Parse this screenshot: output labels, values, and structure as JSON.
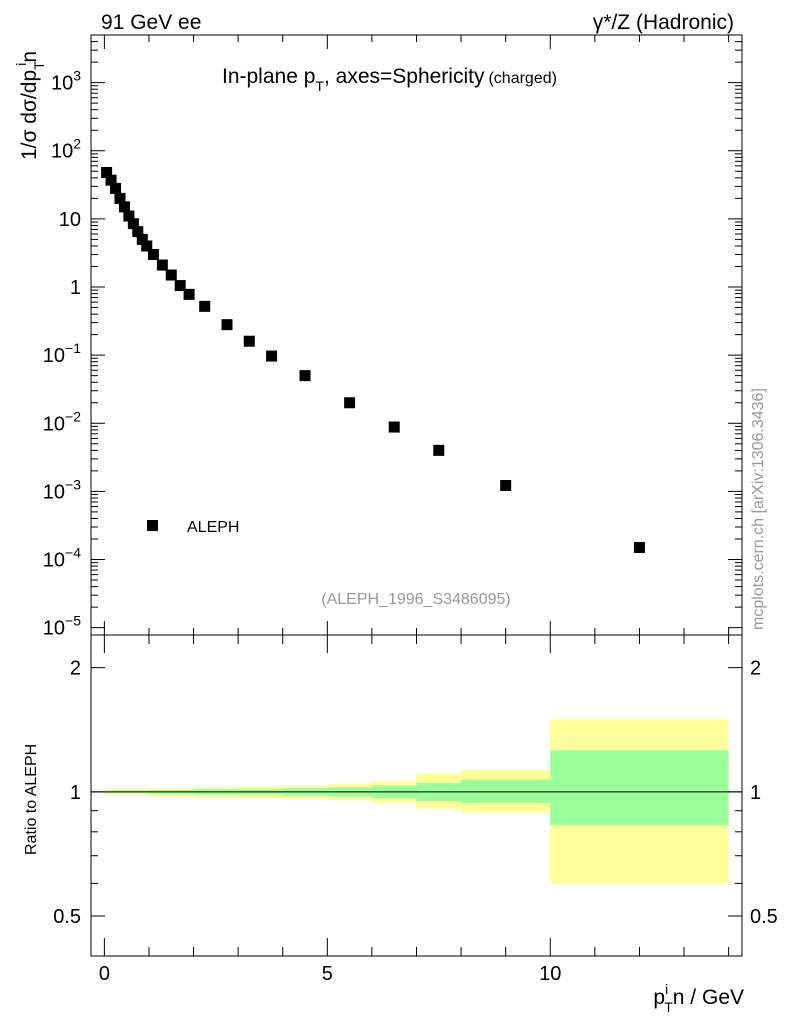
{
  "header": {
    "left": "91 GeV ee",
    "right_prefix": "γ*/Z",
    "right_suffix": "(Hadronic)"
  },
  "side_label": "mcplots.cern.ch [arXiv:1306.3436]",
  "chart_data": [
    {
      "type": "scatter",
      "title": {
        "prefix": "In-plane p",
        "sub": "T",
        "middle": ", axes=Sphericity",
        "suffix": "(charged)"
      },
      "ylabel": {
        "a": "1/σ dσ/dp",
        "sup": "i",
        "sub": "T",
        "b": "n"
      },
      "yscale": "log",
      "ylim": [
        7.8e-06,
        5000
      ],
      "xlim": [
        -0.3,
        14.3
      ],
      "yticks": [
        {
          "v": 1000,
          "base": "10",
          "exp": "3",
          "label": ""
        },
        {
          "v": 100,
          "base": "10",
          "exp": "2",
          "label": ""
        },
        {
          "v": 10,
          "base": "",
          "exp": "",
          "label": "10"
        },
        {
          "v": 1,
          "base": "",
          "exp": "",
          "label": "1"
        },
        {
          "v": 0.1,
          "base": "10",
          "exp": "−1",
          "label": ""
        },
        {
          "v": 0.01,
          "base": "10",
          "exp": "−2",
          "label": ""
        },
        {
          "v": 0.001,
          "base": "10",
          "exp": "−3",
          "label": ""
        },
        {
          "v": 0.0001,
          "base": "10",
          "exp": "−4",
          "label": ""
        },
        {
          "v": 1e-05,
          "base": "10",
          "exp": "−5",
          "label": ""
        }
      ],
      "legend": {
        "label": "ALEPH",
        "position": "lower-left"
      },
      "annotation": "(ALEPH_1996_S3486095)",
      "series": [
        {
          "name": "ALEPH",
          "x": [
            0.05,
            0.15,
            0.25,
            0.35,
            0.45,
            0.55,
            0.65,
            0.75,
            0.85,
            0.95,
            1.1,
            1.3,
            1.5,
            1.7,
            1.9,
            2.25,
            2.75,
            3.25,
            3.75,
            4.5,
            5.5,
            6.5,
            7.5,
            9.0,
            12.0
          ],
          "y": [
            48,
            37,
            28,
            20,
            15,
            11,
            8.5,
            6.5,
            5.0,
            4.0,
            3.0,
            2.1,
            1.5,
            1.05,
            0.78,
            0.52,
            0.28,
            0.16,
            0.097,
            0.05,
            0.02,
            0.0088,
            0.004,
            0.00122,
            0.00015
          ]
        }
      ]
    },
    {
      "type": "area",
      "ylabel": "Ratio to ALEPH",
      "xlabel": {
        "a": "p",
        "sup": "i",
        "sub": "T",
        "b": "n / GeV"
      },
      "yscale": "log",
      "ylim": [
        0.4,
        2.4
      ],
      "xlim": [
        -0.3,
        14.3
      ],
      "yticks": [
        {
          "v": 0.5,
          "label": "0.5"
        },
        {
          "v": 1,
          "label": "1"
        },
        {
          "v": 2,
          "label": "2"
        }
      ],
      "xticks": [
        {
          "v": 0,
          "label": "0"
        },
        {
          "v": 5,
          "label": "5"
        },
        {
          "v": 10,
          "label": "10"
        }
      ],
      "bins": [
        {
          "x0": 0.0,
          "x1": 1.0,
          "stat_lo": 0.993,
          "stat_hi": 1.007,
          "tot_lo": 0.985,
          "tot_hi": 1.015
        },
        {
          "x0": 1.0,
          "x1": 2.0,
          "stat_lo": 0.99,
          "stat_hi": 1.01,
          "tot_lo": 0.975,
          "tot_hi": 1.02
        },
        {
          "x0": 2.0,
          "x1": 3.0,
          "stat_lo": 0.985,
          "stat_hi": 1.015,
          "tot_lo": 0.97,
          "tot_hi": 1.025
        },
        {
          "x0": 3.0,
          "x1": 4.0,
          "stat_lo": 0.985,
          "stat_hi": 1.015,
          "tot_lo": 0.965,
          "tot_hi": 1.03
        },
        {
          "x0": 4.0,
          "x1": 5.0,
          "stat_lo": 0.98,
          "stat_hi": 1.02,
          "tot_lo": 0.96,
          "tot_hi": 1.035
        },
        {
          "x0": 5.0,
          "x1": 6.0,
          "stat_lo": 0.975,
          "stat_hi": 1.025,
          "tot_lo": 0.955,
          "tot_hi": 1.045
        },
        {
          "x0": 6.0,
          "x1": 7.0,
          "stat_lo": 0.965,
          "stat_hi": 1.035,
          "tot_lo": 0.94,
          "tot_hi": 1.06
        },
        {
          "x0": 7.0,
          "x1": 8.0,
          "stat_lo": 0.95,
          "stat_hi": 1.05,
          "tot_lo": 0.91,
          "tot_hi": 1.11
        },
        {
          "x0": 8.0,
          "x1": 10.0,
          "stat_lo": 0.94,
          "stat_hi": 1.07,
          "tot_lo": 0.89,
          "tot_hi": 1.13
        },
        {
          "x0": 10.0,
          "x1": 14.0,
          "stat_lo": 0.83,
          "stat_hi": 1.26,
          "tot_lo": 0.6,
          "tot_hi": 1.5
        }
      ],
      "reference_line": 1.0
    }
  ],
  "colors": {
    "stat_band": "#99ff99",
    "total_band": "#ffff99",
    "marker": "#000000",
    "annotation": "#999999"
  }
}
